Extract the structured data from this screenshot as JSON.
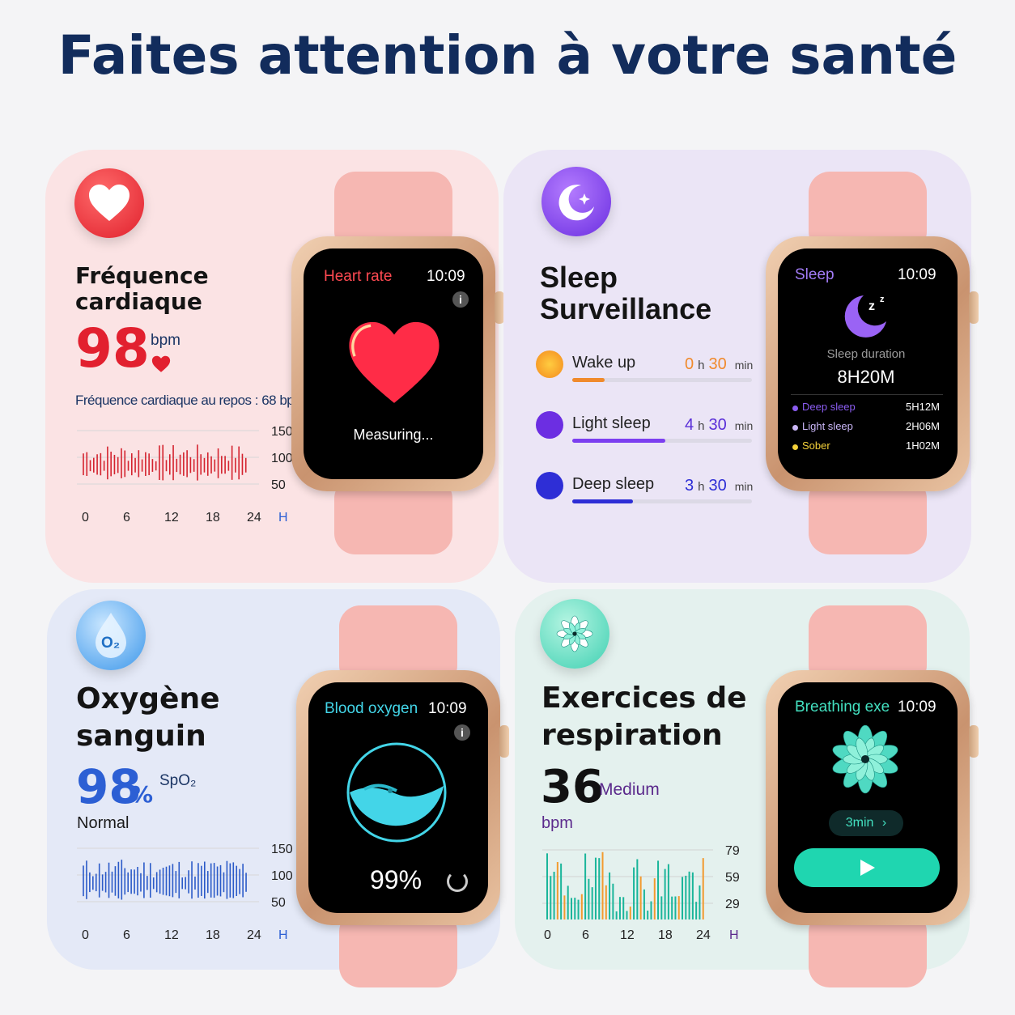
{
  "title": "Faites attention à votre santé",
  "heart": {
    "heading_line1": "Fréquence",
    "heading_line2": "cardiaque",
    "value": "98",
    "unit": "bpm",
    "resting": "Fréquence cardiaque au repos : 68 bpm",
    "watch": {
      "title": "Heart rate",
      "time": "10:09",
      "status": "Measuring..."
    }
  },
  "sleep": {
    "heading_line1": "Sleep",
    "heading_line2": "Surveillance",
    "rows": [
      {
        "label": "Wake up",
        "hours": "0",
        "h": "h",
        "minutes": "30",
        "min": "min",
        "fill": 0.18,
        "color": "#f08a2c"
      },
      {
        "label": "Light sleep",
        "hours": "4",
        "h": "h",
        "minutes": "30",
        "min": "min",
        "fill": 0.52,
        "color": "#7c3ff0"
      },
      {
        "label": "Deep sleep",
        "hours": "3",
        "h": "h",
        "minutes": "30",
        "min": "min",
        "fill": 0.34,
        "color": "#2e2ed6"
      }
    ],
    "watch": {
      "title": "Sleep",
      "time": "10:09",
      "duration_label": "Sleep duration",
      "duration": "8H20M",
      "items": [
        {
          "label": "Deep sleep",
          "value": "5H12M",
          "color": "#8a5cf0"
        },
        {
          "label": "Light sleep",
          "value": "2H06M",
          "color": "#c9b6f6"
        },
        {
          "label": "Sober",
          "value": "1H02M",
          "color": "#f4d13a"
        }
      ]
    }
  },
  "oxygen": {
    "heading_line1": "Oxygène",
    "heading_line2": "sanguin",
    "value": "98",
    "pct": "%",
    "unit": "SpO₂",
    "status": "Normal",
    "badge": "O₂",
    "watch": {
      "title": "Blood oxygen",
      "time": "10:09",
      "value": "99%"
    }
  },
  "breathing": {
    "heading_line1": "Exercices de",
    "heading_line2": "respiration",
    "value": "36",
    "level": "Medium",
    "unit": "bpm",
    "watch": {
      "title": "Breathing exe",
      "time": "10:09",
      "duration": "3min"
    }
  },
  "charts": {
    "heart": {
      "y_ticks": [
        "150",
        "100",
        "50"
      ],
      "x_ticks": [
        "0",
        "6",
        "12",
        "18",
        "24"
      ],
      "x_unit": "H",
      "color": "#d4232f"
    },
    "oxygen": {
      "y_ticks": [
        "150",
        "100",
        "50"
      ],
      "x_ticks": [
        "0",
        "6",
        "12",
        "18",
        "24"
      ],
      "x_unit": "H",
      "color": "#2b5ac8"
    },
    "breathing": {
      "y_ticks": [
        "79",
        "59",
        "29"
      ],
      "x_ticks": [
        "0",
        "6",
        "12",
        "18",
        "24"
      ],
      "x_unit": "H",
      "colors": [
        "#1ab59a",
        "#f29a2e"
      ]
    }
  }
}
